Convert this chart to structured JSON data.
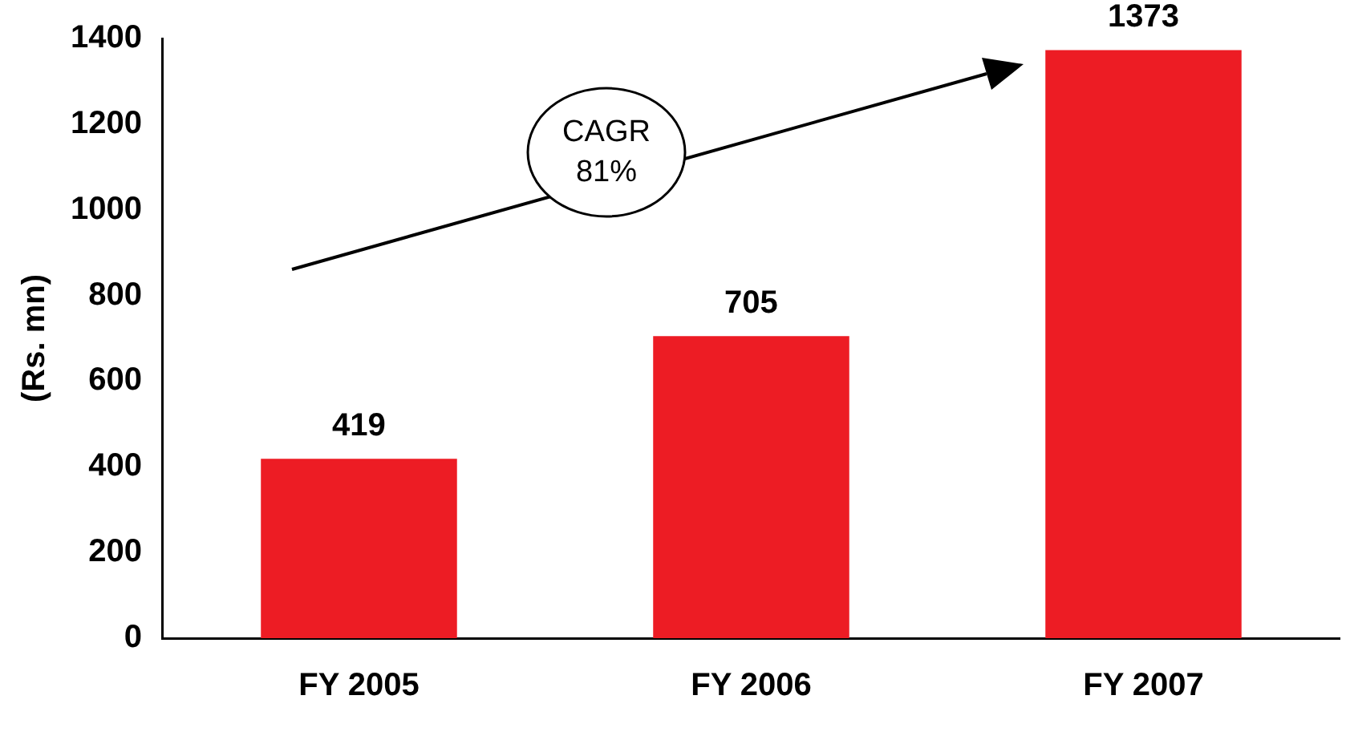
{
  "chart_data": {
    "type": "bar",
    "ylabel": "(Rs. mn)",
    "categories": [
      "FY 2005",
      "FY 2006",
      "FY 2007"
    ],
    "values": [
      419,
      705,
      1373
    ],
    "color": "#ed1c24",
    "ylim": [
      0,
      1400
    ],
    "yticks": [
      0,
      200,
      400,
      600,
      800,
      1000,
      1200,
      1400
    ],
    "grid": false,
    "legend": false,
    "data_labels": true,
    "annotations": [
      "CAGR 81%"
    ]
  }
}
